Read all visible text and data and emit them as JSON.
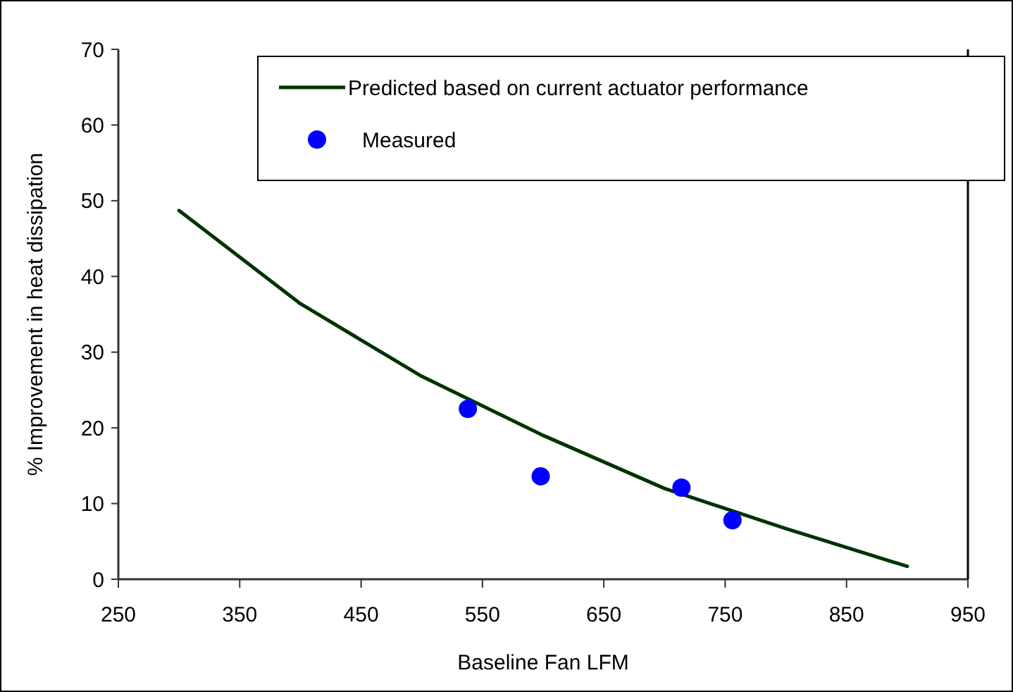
{
  "chart_data": {
    "type": "line",
    "xlabel": "Baseline Fan LFM",
    "ylabel": "% Improvement in heat dissipation",
    "xlim": [
      250,
      950
    ],
    "xticks": [
      250,
      350,
      450,
      550,
      650,
      750,
      850,
      950
    ],
    "ylim": [
      0,
      70
    ],
    "yticks": [
      0,
      10,
      20,
      30,
      40,
      50,
      60,
      70
    ],
    "grid": false,
    "legend": "top right",
    "series": [
      {
        "name": "Predicted based on current actuator performance",
        "color": "#003300",
        "marker": "none",
        "line_style": "solid",
        "x": [
          300,
          400,
          500,
          600,
          700,
          800,
          900
        ],
        "values": [
          48.7,
          36.4,
          26.8,
          19,
          12,
          6.7,
          1.7
        ]
      },
      {
        "name": "Measured",
        "type": "scatter",
        "color": "#0000ff",
        "marker": "circle",
        "x": [
          538,
          598,
          714,
          756
        ],
        "values": [
          22.5,
          13.6,
          12.1,
          7.8
        ]
      }
    ]
  }
}
